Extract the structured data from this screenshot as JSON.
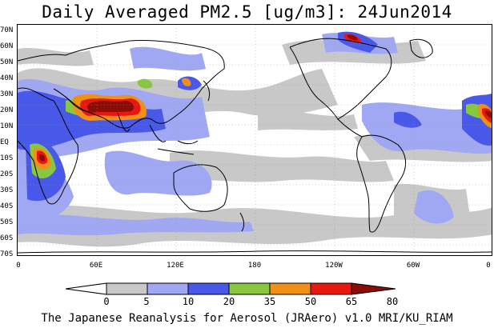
{
  "title": "Daily Averaged PM2.5 [ug/m3]: 24Jun2014",
  "credit": "The Japanese Reanalysis for Aerosol (JRAero) v1.0 MRI/KU_RIAM",
  "map": {
    "lat_labels": [
      "70N",
      "60N",
      "50N",
      "40N",
      "30N",
      "20N",
      "10N",
      "EQ",
      "10S",
      "20S",
      "30S",
      "40S",
      "50S",
      "60S",
      "70S"
    ],
    "lon_labels": [
      "0",
      "60E",
      "120E",
      "180",
      "120W",
      "60W",
      "0"
    ]
  },
  "colorbar": {
    "bins": [
      {
        "from": 0,
        "to": 5,
        "color": "#ffffff"
      },
      {
        "from": 5,
        "to": 10,
        "color": "#c8c8c8"
      },
      {
        "from": 10,
        "to": 20,
        "color": "#a0a8f4"
      },
      {
        "from": 20,
        "to": 35,
        "color": "#4858e8"
      },
      {
        "from": 35,
        "to": 50,
        "color": "#88c840"
      },
      {
        "from": 50,
        "to": 65,
        "color": "#f09018"
      },
      {
        "from": 65,
        "to": 80,
        "color": "#e81810"
      },
      {
        "from": 80,
        "to": null,
        "color": "#8c0c08"
      }
    ],
    "tick_labels": [
      "0",
      "5",
      "10",
      "20",
      "35",
      "50",
      "65",
      "80"
    ]
  }
}
